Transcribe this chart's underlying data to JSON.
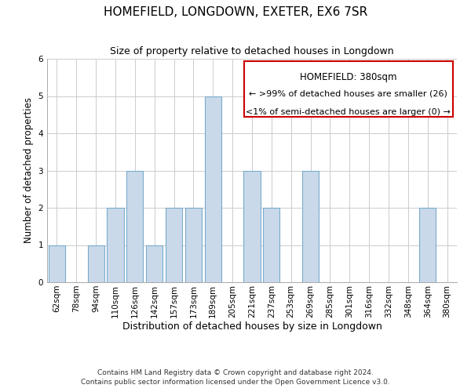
{
  "title": "HOMEFIELD, LONGDOWN, EXETER, EX6 7SR",
  "subtitle": "Size of property relative to detached houses in Longdown",
  "xlabel": "Distribution of detached houses by size in Longdown",
  "ylabel": "Number of detached properties",
  "bar_labels": [
    "62sqm",
    "78sqm",
    "94sqm",
    "110sqm",
    "126sqm",
    "142sqm",
    "157sqm",
    "173sqm",
    "189sqm",
    "205sqm",
    "221sqm",
    "237sqm",
    "253sqm",
    "269sqm",
    "285sqm",
    "301sqm",
    "316sqm",
    "332sqm",
    "348sqm",
    "364sqm",
    "380sqm"
  ],
  "bar_values": [
    1,
    0,
    1,
    2,
    3,
    1,
    2,
    2,
    5,
    0,
    3,
    2,
    0,
    3,
    0,
    0,
    0,
    0,
    0,
    2,
    0
  ],
  "bar_color": "#c9d9e9",
  "bar_edgecolor": "#7aabcc",
  "ylim": [
    0,
    6
  ],
  "yticks": [
    0,
    1,
    2,
    3,
    4,
    5,
    6
  ],
  "legend_title": "HOMEFIELD: 380sqm",
  "legend_line1": "← >99% of detached houses are smaller (26)",
  "legend_line2": "<1% of semi-detached houses are larger (0) →",
  "legend_box_color": "#ffffff",
  "legend_box_edgecolor": "#cc0000",
  "footnote1": "Contains HM Land Registry data © Crown copyright and database right 2024.",
  "footnote2": "Contains public sector information licensed under the Open Government Licence v3.0.",
  "background_color": "#ffffff",
  "grid_color": "#cccccc",
  "title_fontsize": 11,
  "subtitle_fontsize": 9,
  "xlabel_fontsize": 9,
  "ylabel_fontsize": 8.5,
  "tick_fontsize": 7.5,
  "legend_title_fontsize": 8.5,
  "legend_fontsize": 8,
  "footnote_fontsize": 6.5
}
